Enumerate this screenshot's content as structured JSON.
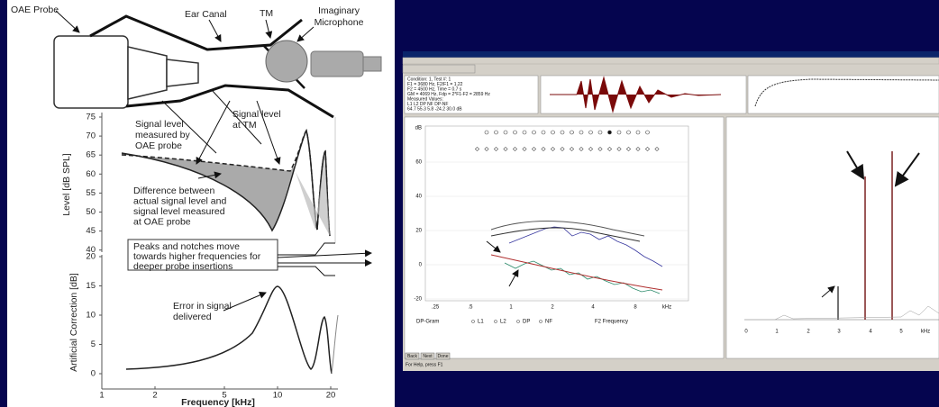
{
  "left_figure": {
    "labels": {
      "probe": "OAE Probe",
      "canal": "Ear Canal",
      "tm": "TM",
      "microphone": [
        "Imaginary",
        "Microphone"
      ],
      "probe_level": [
        "Signal level",
        "measured by",
        "OAE probe"
      ],
      "tm_level": [
        "Signal level",
        "at TM"
      ],
      "difference": [
        "Difference between",
        "actual signal level and",
        "signal level measured",
        "at OAE probe"
      ],
      "peaks": [
        "Peaks and notches move",
        "towards higher frequencies for",
        "deeper probe insertions"
      ],
      "error": [
        "Error in signal",
        "delivered"
      ]
    },
    "upper_chart": {
      "ylabel": "Level [dB SPL]",
      "yticks": [
        "75",
        "70",
        "65",
        "60",
        "55",
        "50",
        "45",
        "40"
      ]
    },
    "lower_chart": {
      "ylabel": "Artificial Correction [dB]",
      "yticks": [
        "20",
        "15",
        "10",
        "5",
        "0"
      ],
      "xlabel": "Frequency [kHz]",
      "xticks": [
        "1",
        "2",
        "5",
        "10",
        "20"
      ]
    }
  },
  "software": {
    "info": [
      "Condition: 1, Test #: 1",
      "F1 = 3680 Hz, F2/F1 = 1.22",
      "F2 = 4500 Hz, Time = 0.7 s",
      "GM = 4069 Hz, Fdp = 2*F1-F2 = 2859 Hz",
      "Measured Values:",
      "L1    L2    DP    NF    DP-NF",
      "64.7  55.3  5.8  -24.2  30.0  dB"
    ],
    "dpgram": {
      "yticks": [
        "dB",
        "60",
        "40",
        "20",
        "0",
        "-20"
      ],
      "xticks": [
        ".25",
        ".5",
        "1",
        "2",
        "4",
        "8",
        "kHz"
      ],
      "title": "DP-Gram",
      "legend": [
        "L1",
        "L2",
        "DP",
        "NF"
      ],
      "xlabel": "F2 Frequency"
    },
    "spectrum": {
      "xticks": [
        "0",
        "1",
        "2",
        "3",
        "4",
        "5",
        "kHz"
      ]
    },
    "buttons": [
      "Back",
      "Next",
      "Done"
    ],
    "status": "For Help, press F1"
  }
}
